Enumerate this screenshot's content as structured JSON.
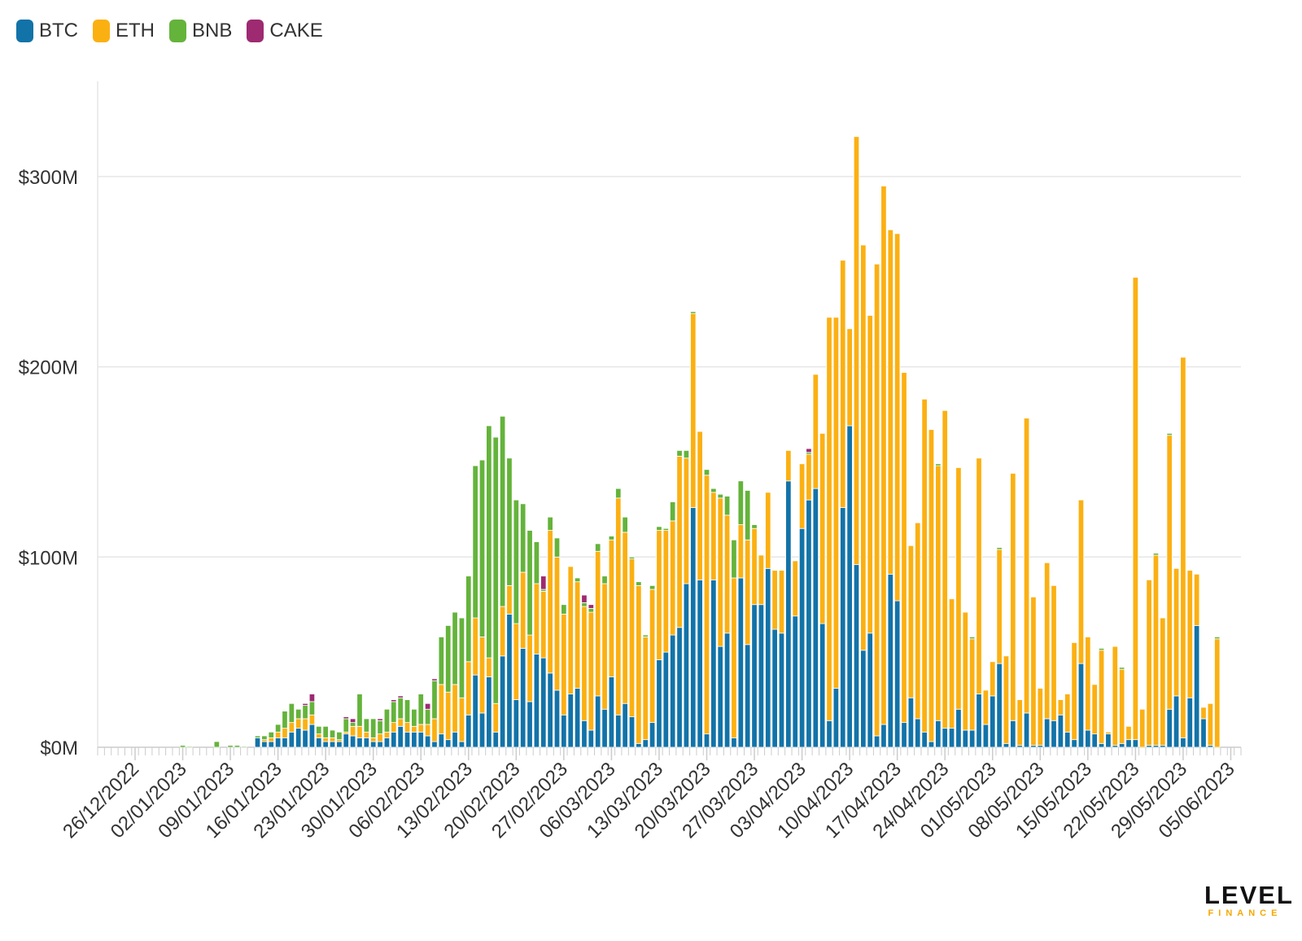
{
  "colors": {
    "BTC": "#1273a8",
    "ETH": "#fbb012",
    "BNB": "#64b33b",
    "CAKE": "#9e2a71",
    "grid": "#e6e6e6",
    "axis": "#cccccc",
    "text": "#333333"
  },
  "legend": [
    {
      "label": "BTC",
      "key": "BTC"
    },
    {
      "label": "ETH",
      "key": "ETH"
    },
    {
      "label": "BNB",
      "key": "BNB"
    },
    {
      "label": "CAKE",
      "key": "CAKE"
    }
  ],
  "logo": {
    "main": "LEVEL",
    "sub": "FINANCE"
  },
  "chart_data": {
    "type": "bar",
    "stacked": true,
    "title": "",
    "xlabel": "",
    "ylabel": "",
    "ylim": [
      0,
      350
    ],
    "y_unit": "$M",
    "yticks": [
      {
        "value": 0,
        "label": "$0M"
      },
      {
        "value": 100,
        "label": "$100M"
      },
      {
        "value": 200,
        "label": "$200M"
      },
      {
        "value": 300,
        "label": "$300M"
      }
    ],
    "x_start": "2022-12-21",
    "x_end": "2023-06-06",
    "xticks": [
      "26/12/2022",
      "02/01/2023",
      "09/01/2023",
      "16/01/2023",
      "23/01/2023",
      "30/01/2023",
      "06/02/2023",
      "13/02/2023",
      "20/02/2023",
      "27/02/2023",
      "06/03/2023",
      "13/03/2023",
      "20/03/2023",
      "27/03/2023",
      "03/04/2023",
      "10/04/2023",
      "17/04/2023",
      "24/04/2023",
      "01/05/2023",
      "08/05/2023",
      "15/05/2023",
      "22/05/2023",
      "29/05/2023",
      "05/06/2023"
    ],
    "legend_position": "top-left",
    "grid": true,
    "series_order": [
      "BTC",
      "ETH",
      "BNB",
      "CAKE"
    ],
    "values": [
      [
        "2023-01-02",
        0,
        0,
        1,
        0
      ],
      [
        "2023-01-03",
        0,
        0,
        0.5,
        0
      ],
      [
        "2023-01-07",
        0,
        0,
        3,
        0
      ],
      [
        "2023-01-09",
        0,
        0,
        1,
        0
      ],
      [
        "2023-01-10",
        0,
        0,
        1,
        0
      ],
      [
        "2023-01-11",
        0,
        0,
        0.5,
        0
      ],
      [
        "2023-01-13",
        5,
        0,
        1,
        0
      ],
      [
        "2023-01-14",
        3,
        1,
        2,
        0
      ],
      [
        "2023-01-15",
        3,
        2,
        3,
        0
      ],
      [
        "2023-01-16",
        5,
        3,
        4,
        0
      ],
      [
        "2023-01-17",
        5,
        5,
        9,
        0
      ],
      [
        "2023-01-18",
        8,
        5,
        10,
        0
      ],
      [
        "2023-01-19",
        10,
        5,
        5,
        0
      ],
      [
        "2023-01-20",
        9,
        6,
        7,
        1
      ],
      [
        "2023-01-21",
        12,
        5,
        7,
        4
      ],
      [
        "2023-01-22",
        5,
        2,
        4,
        0
      ],
      [
        "2023-01-23",
        3,
        2,
        6,
        0
      ],
      [
        "2023-01-24",
        3,
        2,
        4,
        0
      ],
      [
        "2023-01-25",
        3,
        1,
        4,
        0
      ],
      [
        "2023-01-26",
        7,
        1,
        7,
        1
      ],
      [
        "2023-01-27",
        6,
        5,
        2,
        2
      ],
      [
        "2023-01-28",
        5,
        6,
        17,
        0
      ],
      [
        "2023-01-29",
        5,
        3,
        7,
        0
      ],
      [
        "2023-01-30",
        3,
        2,
        10,
        0
      ],
      [
        "2023-01-31",
        3,
        4,
        7,
        1
      ],
      [
        "2023-02-01",
        5,
        3,
        12,
        0
      ],
      [
        "2023-02-02",
        8,
        5,
        11,
        1
      ],
      [
        "2023-02-03",
        11,
        4,
        11,
        1
      ],
      [
        "2023-02-04",
        8,
        5,
        12,
        0
      ],
      [
        "2023-02-05",
        8,
        3,
        9,
        0
      ],
      [
        "2023-02-06",
        8,
        4,
        16,
        0
      ],
      [
        "2023-02-07",
        6,
        6,
        8,
        3
      ],
      [
        "2023-02-08",
        3,
        12,
        20,
        1
      ],
      [
        "2023-02-09",
        7,
        26,
        25,
        0
      ],
      [
        "2023-02-10",
        4,
        25,
        35,
        0
      ],
      [
        "2023-02-11",
        8,
        25,
        38,
        0
      ],
      [
        "2023-02-12",
        3,
        23,
        42,
        0
      ],
      [
        "2023-02-13",
        17,
        28,
        45,
        0
      ],
      [
        "2023-02-14",
        38,
        30,
        80,
        0
      ],
      [
        "2023-02-15",
        18,
        40,
        93,
        0
      ],
      [
        "2023-02-16",
        37,
        10,
        122,
        0
      ],
      [
        "2023-02-17",
        8,
        15,
        140,
        0
      ],
      [
        "2023-02-18",
        48,
        26,
        100,
        0
      ],
      [
        "2023-02-19",
        70,
        15,
        67,
        0
      ],
      [
        "2023-02-20",
        25,
        40,
        65,
        0
      ],
      [
        "2023-02-21",
        52,
        40,
        36,
        0
      ],
      [
        "2023-02-22",
        24,
        35,
        55,
        0
      ],
      [
        "2023-02-23",
        49,
        37,
        22,
        0
      ],
      [
        "2023-02-24",
        47,
        35,
        1,
        7
      ],
      [
        "2023-02-25",
        39,
        75,
        7,
        0
      ],
      [
        "2023-02-26",
        30,
        70,
        10,
        0
      ],
      [
        "2023-02-27",
        17,
        53,
        5,
        0
      ],
      [
        "2023-02-28",
        28,
        67,
        0,
        0
      ],
      [
        "2023-03-01",
        31,
        56,
        2,
        0
      ],
      [
        "2023-03-02",
        14,
        60,
        2,
        4
      ],
      [
        "2023-03-03",
        9,
        62,
        2,
        2
      ],
      [
        "2023-03-04",
        27,
        76,
        4,
        0
      ],
      [
        "2023-03-05",
        20,
        66,
        4,
        0
      ],
      [
        "2023-03-06",
        37,
        72,
        2,
        0
      ],
      [
        "2023-03-07",
        17,
        114,
        5,
        0
      ],
      [
        "2023-03-08",
        23,
        90,
        8,
        0
      ],
      [
        "2023-03-09",
        16,
        83,
        1,
        0
      ],
      [
        "2023-03-10",
        2,
        83,
        2,
        0
      ],
      [
        "2023-03-11",
        4,
        54,
        1,
        0
      ],
      [
        "2023-03-12",
        13,
        70,
        2,
        0
      ],
      [
        "2023-03-13",
        46,
        68,
        2,
        0
      ],
      [
        "2023-03-14",
        50,
        64,
        1,
        0
      ],
      [
        "2023-03-15",
        59,
        60,
        10,
        0
      ],
      [
        "2023-03-16",
        63,
        90,
        3,
        0
      ],
      [
        "2023-03-17",
        86,
        66,
        4,
        0
      ],
      [
        "2023-03-18",
        126,
        102,
        1,
        0
      ],
      [
        "2023-03-19",
        88,
        78,
        0,
        0
      ],
      [
        "2023-03-20",
        7,
        136,
        3,
        0
      ],
      [
        "2023-03-21",
        88,
        46,
        2,
        0
      ],
      [
        "2023-03-22",
        53,
        78,
        2,
        0
      ],
      [
        "2023-03-23",
        60,
        62,
        10,
        0
      ],
      [
        "2023-03-24",
        5,
        84,
        20,
        0
      ],
      [
        "2023-03-25",
        89,
        28,
        23,
        0
      ],
      [
        "2023-03-26",
        54,
        55,
        26,
        0
      ],
      [
        "2023-03-27",
        75,
        40,
        2,
        0
      ],
      [
        "2023-03-28",
        75,
        26,
        0,
        0
      ],
      [
        "2023-03-29",
        94,
        40,
        0,
        0
      ],
      [
        "2023-03-30",
        62,
        31,
        0,
        0
      ],
      [
        "2023-03-31",
        60,
        33,
        0,
        0
      ],
      [
        "2023-04-01",
        140,
        16,
        0,
        0
      ],
      [
        "2023-04-02",
        69,
        29,
        0,
        0
      ],
      [
        "2023-04-03",
        115,
        34,
        0,
        0
      ],
      [
        "2023-04-04",
        130,
        24,
        1,
        2
      ],
      [
        "2023-04-05",
        136,
        60,
        0,
        0
      ],
      [
        "2023-04-06",
        65,
        100,
        0,
        0
      ],
      [
        "2023-04-07",
        14,
        212,
        0,
        0
      ],
      [
        "2023-04-08",
        31,
        195,
        0,
        0
      ],
      [
        "2023-04-09",
        126,
        130,
        0,
        0
      ],
      [
        "2023-04-10",
        169,
        51,
        0,
        0
      ],
      [
        "2023-04-11",
        96,
        225,
        0,
        0
      ],
      [
        "2023-04-12",
        51,
        213,
        0,
        0
      ],
      [
        "2023-04-13",
        60,
        167,
        0,
        0
      ],
      [
        "2023-04-14",
        6,
        248,
        0,
        0
      ],
      [
        "2023-04-15",
        12,
        283,
        0,
        0
      ],
      [
        "2023-04-16",
        91,
        181,
        0,
        0
      ],
      [
        "2023-04-17",
        77,
        193,
        0,
        0
      ],
      [
        "2023-04-18",
        13,
        184,
        0,
        0
      ],
      [
        "2023-04-19",
        26,
        80,
        0,
        0
      ],
      [
        "2023-04-20",
        15,
        103,
        0,
        0
      ],
      [
        "2023-04-21",
        8,
        175,
        0,
        0
      ],
      [
        "2023-04-22",
        3,
        164,
        0,
        0
      ],
      [
        "2023-04-23",
        14,
        134,
        1,
        0
      ],
      [
        "2023-04-24",
        10,
        167,
        0,
        0
      ],
      [
        "2023-04-25",
        10,
        68,
        0,
        0
      ],
      [
        "2023-04-26",
        20,
        127,
        0,
        0
      ],
      [
        "2023-04-27",
        9,
        62,
        0,
        0
      ],
      [
        "2023-04-28",
        9,
        48,
        1,
        0
      ],
      [
        "2023-04-29",
        28,
        124,
        0,
        0
      ],
      [
        "2023-04-30",
        12,
        18,
        0,
        0
      ],
      [
        "2023-05-01",
        27,
        18,
        0,
        0
      ],
      [
        "2023-05-02",
        44,
        60,
        1,
        0
      ],
      [
        "2023-05-03",
        2,
        46,
        0,
        0
      ],
      [
        "2023-05-04",
        14,
        130,
        0,
        0
      ],
      [
        "2023-05-05",
        1,
        24,
        0,
        0
      ],
      [
        "2023-05-06",
        18,
        155,
        0,
        0
      ],
      [
        "2023-05-07",
        1,
        78,
        0,
        0
      ],
      [
        "2023-05-08",
        1,
        30,
        0,
        0
      ],
      [
        "2023-05-09",
        15,
        82,
        0,
        0
      ],
      [
        "2023-05-10",
        14,
        71,
        0,
        0
      ],
      [
        "2023-05-11",
        17,
        8,
        0,
        0
      ],
      [
        "2023-05-12",
        8,
        20,
        0,
        0
      ],
      [
        "2023-05-13",
        4,
        51,
        0,
        0
      ],
      [
        "2023-05-14",
        44,
        86,
        0,
        0
      ],
      [
        "2023-05-15",
        9,
        49,
        0,
        0
      ],
      [
        "2023-05-16",
        7,
        26,
        0,
        0
      ],
      [
        "2023-05-17",
        2,
        49,
        1,
        0
      ],
      [
        "2023-05-18",
        7,
        1,
        0,
        0
      ],
      [
        "2023-05-19",
        1,
        52,
        0,
        0
      ],
      [
        "2023-05-20",
        2,
        39,
        1,
        0
      ],
      [
        "2023-05-21",
        4,
        7,
        0,
        0
      ],
      [
        "2023-05-22",
        4,
        243,
        0,
        0
      ],
      [
        "2023-05-23",
        0,
        20,
        0,
        0
      ],
      [
        "2023-05-24",
        1,
        87,
        0,
        0
      ],
      [
        "2023-05-25",
        1,
        100,
        1,
        0
      ],
      [
        "2023-05-26",
        1,
        67,
        0,
        0
      ],
      [
        "2023-05-27",
        20,
        144,
        1,
        0
      ],
      [
        "2023-05-28",
        27,
        67,
        0,
        0
      ],
      [
        "2023-05-29",
        5,
        200,
        0,
        0
      ],
      [
        "2023-05-30",
        26,
        67,
        0,
        0
      ],
      [
        "2023-05-31",
        64,
        27,
        0,
        0
      ],
      [
        "2023-06-01",
        15,
        6,
        0,
        0
      ],
      [
        "2023-06-02",
        1,
        22,
        0,
        0
      ],
      [
        "2023-06-03",
        0,
        57,
        1,
        0
      ]
    ]
  }
}
